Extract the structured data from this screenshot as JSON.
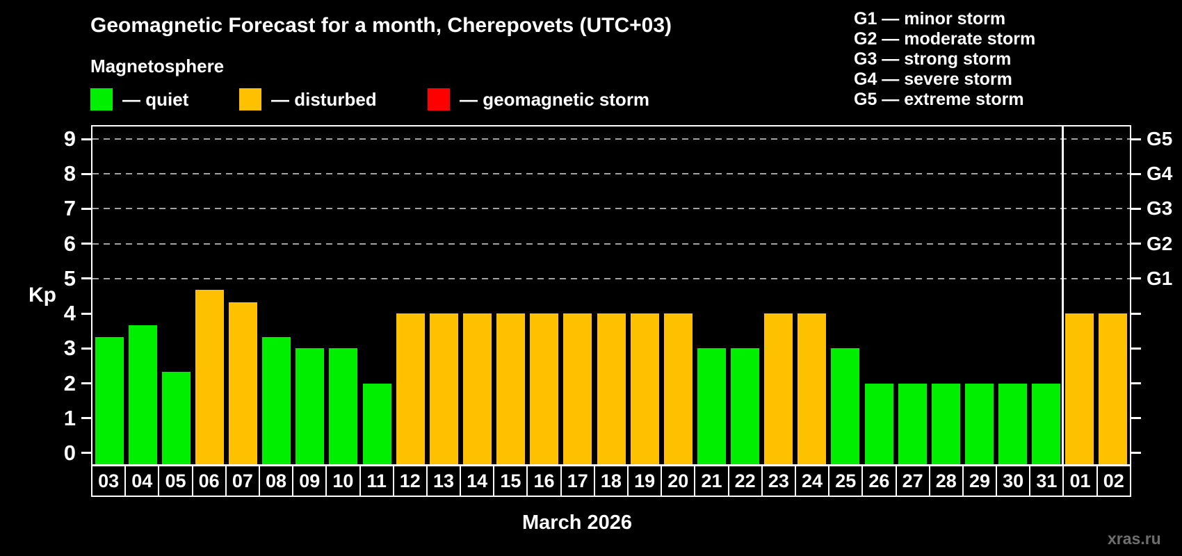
{
  "title": "Geomagnetic Forecast for a month, Cherepovets (UTC+03)",
  "legend": {
    "heading": "Magnetosphere",
    "items": [
      {
        "name": "quiet",
        "label": "— quiet",
        "color": "#00ee00",
        "x": 130
      },
      {
        "name": "disturbed",
        "label": "— disturbed",
        "color": "#ffc000",
        "x": 344
      },
      {
        "name": "geomagnetic-storm",
        "label": "— geomagnetic storm",
        "color": "#ff0000",
        "x": 615
      }
    ]
  },
  "storm_scale": [
    "G1 — minor storm",
    "G2 — moderate storm",
    "G3 — strong storm",
    "G4 — severe storm",
    "G5 — extreme storm"
  ],
  "axis": {
    "y_title": "Kp",
    "y_ticks": [
      0,
      1,
      2,
      3,
      4,
      5,
      6,
      7,
      8,
      9
    ]
  },
  "x_axis_label": "March 2026",
  "watermark": "xras.ru",
  "chart_data": {
    "type": "bar",
    "title": "Geomagnetic Forecast for a month, Cherepovets (UTC+03)",
    "xlabel": "March 2026",
    "ylabel": "Kp",
    "ylim": [
      -0.32,
      9.36
    ],
    "grid": "dashed horizontal at Kp 5-9 only",
    "gridlines_at_kp": [
      5,
      6,
      7,
      8,
      9
    ],
    "right_axis_labels": [
      {
        "kp": 5,
        "label": "G1"
      },
      {
        "kp": 6,
        "label": "G2"
      },
      {
        "kp": 7,
        "label": "G3"
      },
      {
        "kp": 8,
        "label": "G4"
      },
      {
        "kp": 9,
        "label": "G5"
      }
    ],
    "categories": [
      "03",
      "04",
      "05",
      "06",
      "07",
      "08",
      "09",
      "10",
      "11",
      "12",
      "13",
      "14",
      "15",
      "16",
      "17",
      "18",
      "19",
      "20",
      "21",
      "22",
      "23",
      "24",
      "25",
      "26",
      "27",
      "28",
      "29",
      "30",
      "31",
      "01",
      "02"
    ],
    "values": [
      3.33,
      3.67,
      2.33,
      4.67,
      4.33,
      3.33,
      3,
      3,
      2,
      4,
      4,
      4,
      4,
      4,
      4,
      4,
      4,
      4,
      3,
      3,
      4,
      4,
      3,
      2,
      2,
      2,
      2,
      2,
      2,
      4,
      4
    ],
    "statuses": [
      "quiet",
      "quiet",
      "quiet",
      "disturbed",
      "disturbed",
      "quiet",
      "quiet",
      "quiet",
      "quiet",
      "disturbed",
      "disturbed",
      "disturbed",
      "disturbed",
      "disturbed",
      "disturbed",
      "disturbed",
      "disturbed",
      "disturbed",
      "quiet",
      "quiet",
      "disturbed",
      "disturbed",
      "quiet",
      "quiet",
      "quiet",
      "quiet",
      "quiet",
      "quiet",
      "quiet",
      "disturbed",
      "disturbed"
    ],
    "status_colors": {
      "quiet": "#00ee00",
      "disturbed": "#ffc000",
      "storm": "#ff0000"
    },
    "month_boundary_index": 29,
    "legend_position": "top-left",
    "note": "bars 03-31 are March 2026, bars 01-02 are April; white vertical line marks month boundary"
  }
}
